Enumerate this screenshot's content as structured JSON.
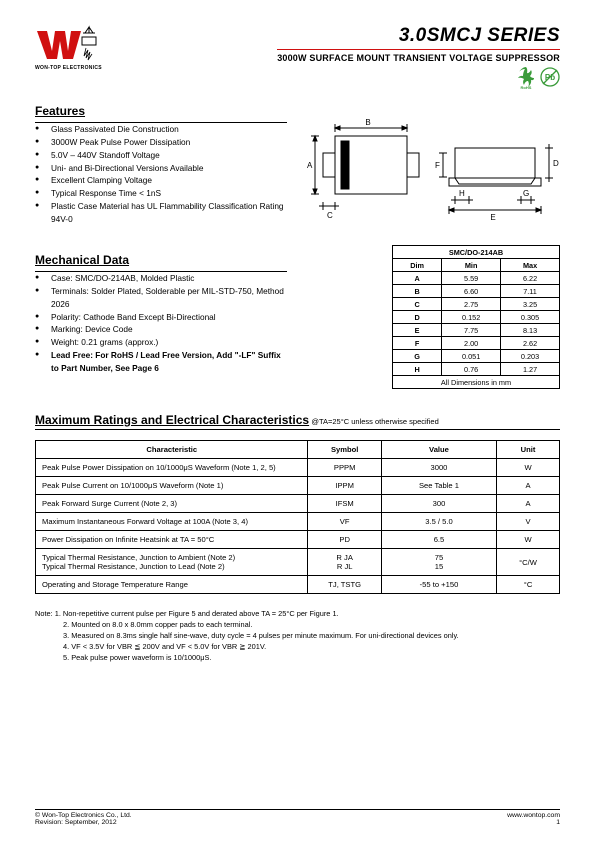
{
  "header": {
    "logo_text": "WON-TOP ELECTRONICS",
    "title": "3.0SMCJ SERIES",
    "subtitle": "3000W SURFACE MOUNT TRANSIENT VOLTAGE SUPPRESSOR",
    "rohs_label": "RoHS",
    "pb_label": "Pb"
  },
  "features": {
    "heading": "Features",
    "items": [
      "Glass Passivated Die Construction",
      "3000W Peak Pulse Power Dissipation",
      "5.0V – 440V Standoff Voltage",
      "Uni- and Bi-Directional Versions Available",
      "Excellent Clamping Voltage",
      "Typical Response Time < 1nS",
      "Plastic Case Material has UL Flammability Classification Rating 94V-0"
    ]
  },
  "mechanical": {
    "heading": "Mechanical Data",
    "items": [
      "Case: SMC/DO-214AB, Molded Plastic",
      "Terminals: Solder Plated, Solderable per MIL-STD-750, Method 2026",
      "Polarity: Cathode Band Except Bi-Directional",
      "Marking: Device Code",
      "Weight: 0.21 grams (approx.)"
    ],
    "leadfree": "Lead Free: For RoHS / Lead Free Version, Add \"-LF\" Suffix to Part Number, See Page 6"
  },
  "dimensions": {
    "title": "SMC/DO-214AB",
    "headers": [
      "Dim",
      "Min",
      "Max"
    ],
    "rows": [
      [
        "A",
        "5.59",
        "6.22"
      ],
      [
        "B",
        "6.60",
        "7.11"
      ],
      [
        "C",
        "2.75",
        "3.25"
      ],
      [
        "D",
        "0.152",
        "0.305"
      ],
      [
        "E",
        "7.75",
        "8.13"
      ],
      [
        "F",
        "2.00",
        "2.62"
      ],
      [
        "G",
        "0.051",
        "0.203"
      ],
      [
        "H",
        "0.76",
        "1.27"
      ]
    ],
    "footer": "All Dimensions in mm"
  },
  "ratings": {
    "heading": "Maximum Ratings and Electrical Characteristics",
    "condition": " @TA=25°C unless otherwise specified",
    "headers": [
      "Characteristic",
      "Symbol",
      "Value",
      "Unit"
    ],
    "rows": [
      {
        "c": "Peak Pulse Power Dissipation on 10/1000μS Waveform (Note 1, 2, 5)",
        "s": "PPPM",
        "v": "3000",
        "u": "W"
      },
      {
        "c": "Peak Pulse Current on 10/1000μS Waveform (Note 1)",
        "s": "IPPM",
        "v": "See Table 1",
        "u": "A"
      },
      {
        "c": "Peak Forward Surge Current (Note 2, 3)",
        "s": "IFSM",
        "v": "300",
        "u": "A"
      },
      {
        "c": "Maximum Instantaneous Forward Voltage at 100A (Note 3, 4)",
        "s": "VF",
        "v": "3.5 / 5.0",
        "u": "V"
      },
      {
        "c": "Power Dissipation on Infinite Heatsink at TA = 50°C",
        "s": "PD",
        "v": "6.5",
        "u": "W"
      },
      {
        "c": "Typical Thermal Resistance, Junction to Ambient (Note 2)\nTypical Thermal Resistance, Junction to Lead (Note 2)",
        "s": "R JA\nR JL",
        "v": "75\n15",
        "u": "°C/W"
      },
      {
        "c": "Operating and Storage Temperature Range",
        "s": "TJ, TSTG",
        "v": "-55 to +150",
        "u": "°C"
      }
    ]
  },
  "notes": {
    "label": "Note:",
    "lines": [
      "1. Non-repetitive current pulse per Figure 5 and derated above TA = 25°C per Figure 1.",
      "2. Mounted on 8.0 x 8.0mm copper pads to each terminal.",
      "3. Measured on 8.3ms single half sine-wave, duty cycle = 4 pulses per minute maximum. For uni-directional devices only.",
      "4. VF < 3.5V for VBR ≦ 200V and VF < 5.0V for VBR ≧ 201V.",
      "5. Peak pulse power waveform is 10/1000μS."
    ]
  },
  "footer": {
    "copyright": "© Won-Top Electronics Co., Ltd.",
    "revision": "Revision: September, 2012",
    "url": "www.wontop.com",
    "page": "1"
  },
  "pkg_labels": {
    "A": "A",
    "B": "B",
    "C": "C",
    "D": "D",
    "E": "E",
    "F": "F",
    "G": "G",
    "H": "H"
  },
  "colors": {
    "red": "#d01010",
    "green_badge": "#3a9b3a",
    "logo_red": "#d01010"
  }
}
